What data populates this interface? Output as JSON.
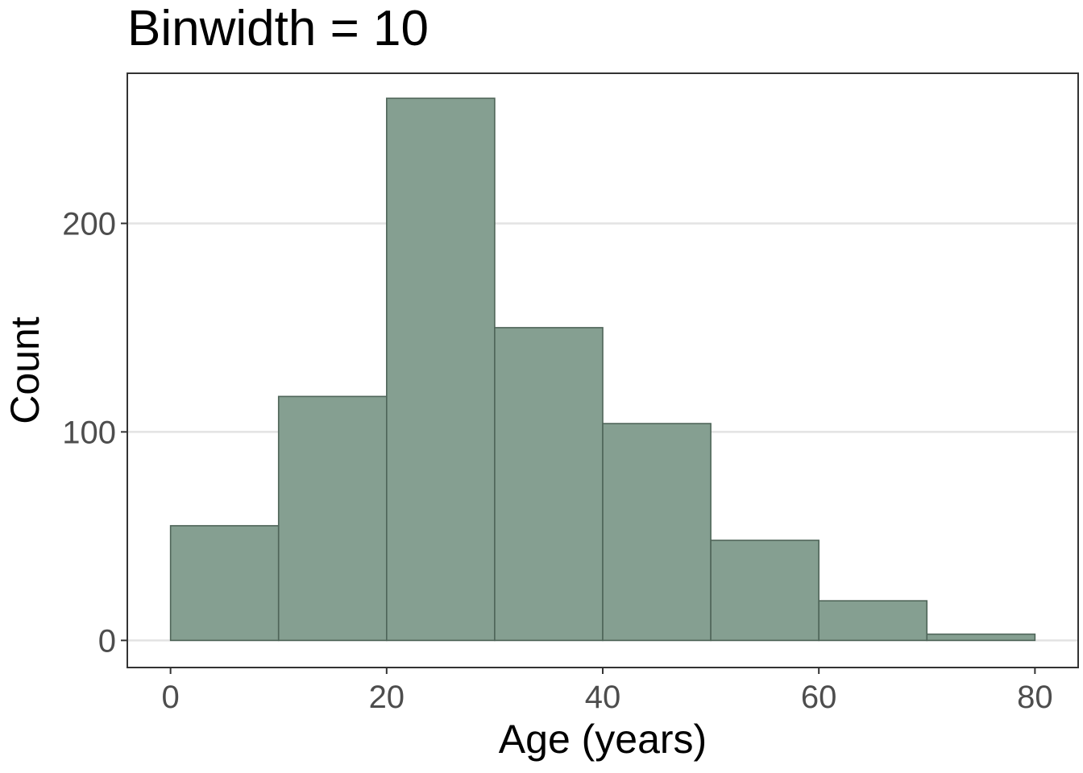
{
  "chart_data": {
    "type": "bar",
    "title": "Binwidth = 10",
    "xlabel": "Age (years)",
    "ylabel": "Count",
    "bin_width": 10,
    "bins": [
      {
        "start": 0,
        "end": 10,
        "count": 55
      },
      {
        "start": 10,
        "end": 20,
        "count": 117
      },
      {
        "start": 20,
        "end": 30,
        "count": 260
      },
      {
        "start": 30,
        "end": 40,
        "count": 150
      },
      {
        "start": 40,
        "end": 50,
        "count": 104
      },
      {
        "start": 50,
        "end": 60,
        "count": 48
      },
      {
        "start": 60,
        "end": 70,
        "count": 19
      },
      {
        "start": 70,
        "end": 80,
        "count": 3
      }
    ],
    "xlim": [
      -4,
      84
    ],
    "ylim": [
      -13,
      272
    ],
    "x_ticks": [
      0,
      20,
      40,
      60,
      80
    ],
    "y_ticks": [
      0,
      100,
      200
    ],
    "grid": "horizontal",
    "legend": "none",
    "colors": {
      "bar_fill": "#859f91",
      "bar_stroke": "#4f6559",
      "grid": "#e3e3e3",
      "panel_border": "#333333",
      "tick_label": "#4d4d4d"
    }
  }
}
